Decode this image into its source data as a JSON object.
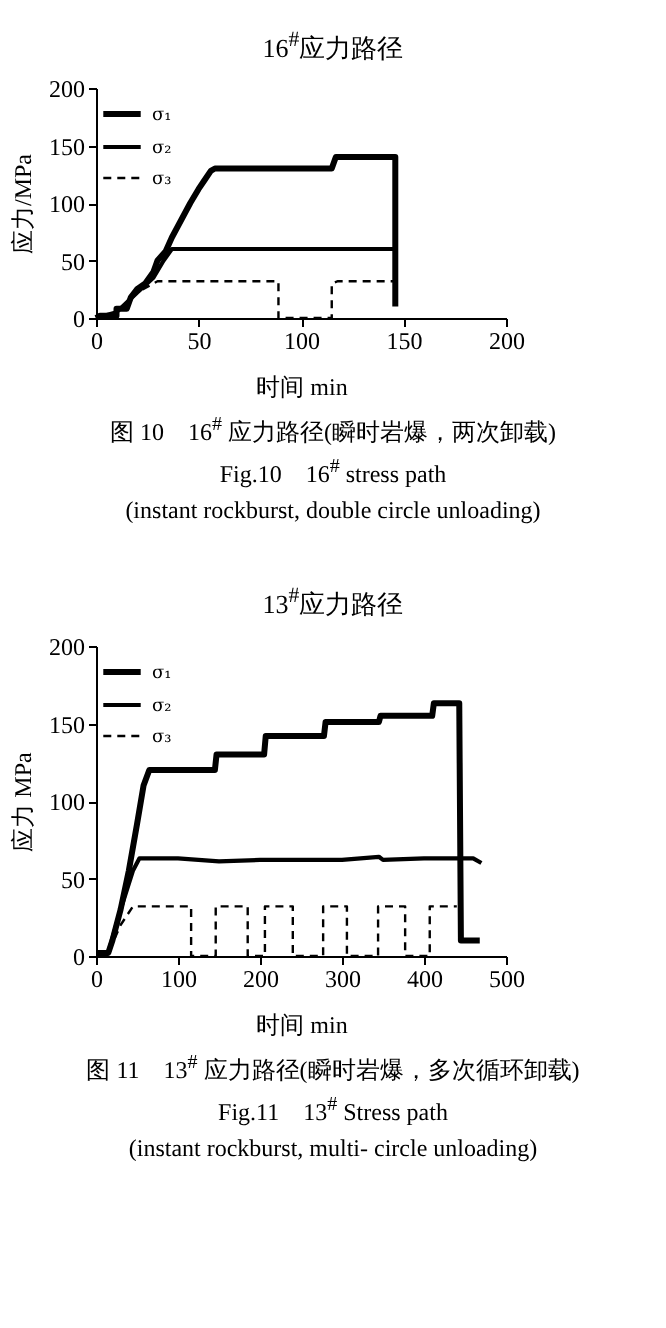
{
  "chart_data": [
    {
      "type": "line",
      "title": "16$^{#}$应力路径",
      "xlabel": "时间  min",
      "ylabel": "应力/MPa",
      "xlim": [
        0,
        200
      ],
      "xticks": [
        0,
        50,
        100,
        150,
        200
      ],
      "ylim": [
        0,
        200
      ],
      "yticks": [
        0,
        50,
        100,
        150,
        200
      ],
      "grid": false,
      "legend": "top left",
      "marker": "none",
      "annotations": [
        "图 10　16$^{#}$ 应力路径(瞬时岩爆，两次卸载)",
        "Fig.10　16$^{#}$ stress path",
        "(instant rockburst, double circle unloading)"
      ],
      "series": [
        {
          "name": "σ₁",
          "color": "#000000",
          "line_style": "solid",
          "x": [
            0,
            2,
            10,
            10,
            15,
            17,
            20,
            24,
            28,
            30,
            34,
            37,
            40,
            43,
            46,
            50,
            53,
            56,
            58,
            115,
            117,
            146,
            146
          ],
          "values": [
            0,
            2,
            2,
            8,
            8,
            18,
            25,
            30,
            40,
            50,
            58,
            70,
            80,
            90,
            100,
            112,
            120,
            128,
            130,
            130,
            140,
            140,
            10
          ]
        },
        {
          "name": "σ₂",
          "color": "#000000",
          "line_style": "solid",
          "x": [
            0,
            10,
            20,
            28,
            33,
            37,
            146
          ],
          "values": [
            0,
            5,
            22,
            35,
            50,
            60,
            60
          ]
        },
        {
          "name": "σ₃",
          "color": "#000000",
          "line_style": "dashed",
          "x": [
            0,
            10,
            20,
            28,
            30,
            89,
            89,
            115,
            115,
            118,
            146
          ],
          "values": [
            0,
            5,
            22,
            30,
            32,
            32,
            0,
            0,
            30,
            32,
            32
          ]
        }
      ]
    },
    {
      "type": "line",
      "title": "13$^{#}$应力路径",
      "xlabel": "时间   min",
      "ylabel": "应力  MPa",
      "xlim": [
        0,
        500
      ],
      "xticks": [
        0,
        100,
        200,
        300,
        400,
        500
      ],
      "ylim": [
        0,
        200
      ],
      "yticks": [
        0,
        50,
        100,
        150,
        200
      ],
      "grid": false,
      "legend": "top left",
      "marker": "none",
      "annotations": [
        "图 11　13$^{#}$ 应力路径(瞬时岩爆，多次循环卸载)",
        "Fig.11　13$^{#}$ Stress path",
        "(instant rockburst, multi- circle unloading)"
      ],
      "series": [
        {
          "name": "σ₁",
          "color": "#000000",
          "line_style": "solid",
          "x": [
            0,
            15,
            20,
            30,
            40,
            50,
            58,
            65,
            145,
            147,
            205,
            207,
            278,
            280,
            345,
            347,
            410,
            412,
            443,
            445,
            468
          ],
          "values": [
            2,
            2,
            10,
            30,
            55,
            85,
            110,
            120,
            120,
            130,
            130,
            142,
            142,
            151,
            151,
            155,
            155,
            163,
            163,
            10,
            10
          ]
        },
        {
          "name": "σ₂",
          "color": "#000000",
          "line_style": "solid",
          "x": [
            0,
            15,
            30,
            45,
            53,
            100,
            150,
            200,
            300,
            345,
            350,
            400,
            460,
            470
          ],
          "values": [
            2,
            2,
            30,
            55,
            63,
            63,
            61,
            62,
            62,
            64,
            62,
            63,
            63,
            60
          ]
        },
        {
          "name": "σ₃",
          "color": "#000000",
          "line_style": "dashed",
          "x": [
            0,
            15,
            30,
            45,
            116,
            116,
            146,
            146,
            185,
            185,
            206,
            206,
            240,
            240,
            277,
            277,
            306,
            306,
            344,
            344,
            377,
            377,
            407,
            407,
            440
          ],
          "values": [
            2,
            2,
            20,
            32,
            32,
            0,
            0,
            32,
            32,
            0,
            0,
            32,
            32,
            0,
            0,
            32,
            32,
            0,
            0,
            32,
            32,
            0,
            0,
            32,
            32
          ]
        }
      ]
    }
  ]
}
